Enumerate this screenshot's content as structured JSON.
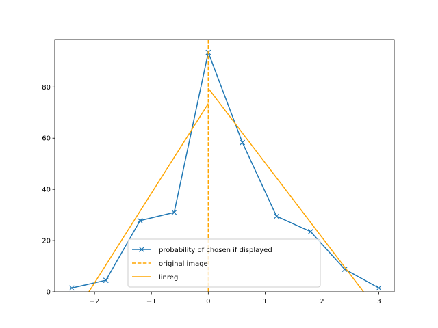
{
  "chart_data": {
    "type": "line",
    "title": "",
    "xlabel": "",
    "ylabel": "",
    "xlim": [
      -2.7,
      3.27
    ],
    "ylim": [
      0,
      98.5
    ],
    "xticks": [
      -2,
      -1,
      0,
      1,
      2,
      3
    ],
    "xtick_labels": [
      "−2",
      "−1",
      "0",
      "1",
      "2",
      "3"
    ],
    "yticks": [
      0,
      20,
      40,
      60,
      80
    ],
    "ytick_labels": [
      "0",
      "20",
      "40",
      "60",
      "80"
    ],
    "grid": false,
    "legend_position": "bottom-center",
    "series": [
      {
        "name": "probability of chosen if displayed",
        "color": "#1f77b4",
        "style": "solid",
        "marker": "x",
        "x": [
          -2.4,
          -1.8,
          -1.2,
          -0.6,
          0.0,
          0.6,
          1.2,
          1.8,
          2.4,
          3.0
        ],
        "y": [
          1.5,
          4.5,
          27.8,
          31.0,
          93.5,
          58.3,
          29.5,
          23.5,
          8.8,
          1.5
        ]
      },
      {
        "name": "original image",
        "color": "#ffa500",
        "style": "dashed",
        "marker": "none",
        "x": [
          0.0,
          0.0
        ],
        "y": [
          0,
          98.5
        ]
      },
      {
        "name": "linreg",
        "color": "#ffa500",
        "style": "solid",
        "marker": "none",
        "segments": [
          {
            "x": [
              -2.1,
              0.0
            ],
            "y": [
              0,
              73.5
            ]
          },
          {
            "x": [
              0.0,
              2.73
            ],
            "y": [
              79.5,
              0
            ]
          }
        ]
      }
    ]
  }
}
